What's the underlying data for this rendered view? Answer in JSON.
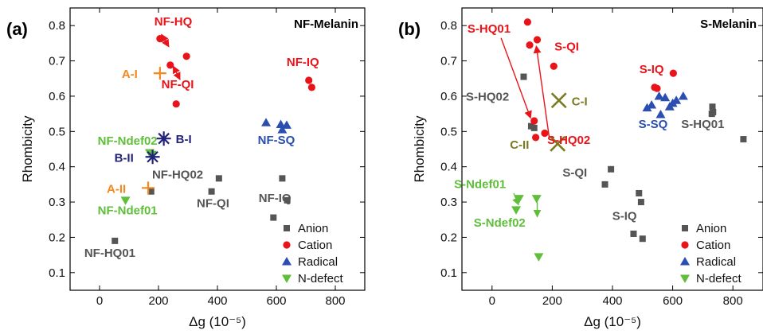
{
  "colors": {
    "anion": "#555555",
    "cation": "#e8141a",
    "radical": "#2a4fb0",
    "ndefect": "#5fbf3a",
    "excitonA": "#f5871f",
    "excitonB": "#23237a",
    "excitonC": "#7a7a1f"
  },
  "chart_data": [
    {
      "type": "scatter",
      "panel_label": "(a)",
      "title": "NF-Melanin",
      "xlabel": "Δg (10⁻⁵)",
      "ylabel": "Rhombicity",
      "xlim": [
        -100,
        900
      ],
      "ylim": [
        0.05,
        0.85
      ],
      "xticks": [
        0,
        200,
        400,
        600,
        800
      ],
      "xtick_labels": [
        "0",
        "200",
        "400",
        "600",
        "800"
      ],
      "yticks": [
        0.1,
        0.2,
        0.3,
        0.4,
        0.5,
        0.6,
        0.7,
        0.8
      ],
      "ytick_labels": [
        "0.1",
        "0.2",
        "0.3",
        "0.4",
        "0.5",
        "0.6",
        "0.7",
        "0.8"
      ],
      "legend_position": "bottom-right",
      "series": [
        {
          "key": "anion",
          "name": "Anion",
          "marker": "square",
          "color": "#555555",
          "points": [
            [
              52,
              0.19
            ],
            [
              175,
              0.33
            ],
            [
              380,
              0.33
            ],
            [
              405,
              0.367
            ],
            [
              590,
              0.256
            ],
            [
              620,
              0.367
            ],
            [
              637,
              0.305
            ]
          ]
        },
        {
          "key": "cation",
          "name": "Cation",
          "marker": "circle",
          "color": "#e8141a",
          "points": [
            [
              205,
              0.763
            ],
            [
              240,
              0.688
            ],
            [
              260,
              0.578
            ],
            [
              295,
              0.713
            ],
            [
              710,
              0.645
            ],
            [
              720,
              0.625
            ]
          ]
        },
        {
          "key": "radical",
          "name": "Radical",
          "marker": "triangle-up",
          "color": "#2a4fb0",
          "points": [
            [
              565,
              0.525
            ],
            [
              615,
              0.52
            ],
            [
              620,
              0.505
            ],
            [
              635,
              0.518
            ]
          ]
        },
        {
          "key": "ndefect",
          "name": "N-defect",
          "marker": "triangle-down",
          "color": "#5fbf3a",
          "points": [
            [
              88,
              0.305
            ],
            [
              170,
              0.44
            ],
            [
              178,
              0.435
            ]
          ]
        }
      ],
      "excitons": [
        {
          "label": "A-I",
          "marker": "plus",
          "color": "#f5871f",
          "point": [
            205,
            0.665
          ],
          "label_dx": -48,
          "label_dy": 0
        },
        {
          "label": "A-II",
          "marker": "plus",
          "color": "#f5871f",
          "point": [
            165,
            0.34
          ],
          "label_dx": -52,
          "label_dy": 0
        },
        {
          "label": "B-I",
          "marker": "asterisk",
          "color": "#23237a",
          "point": [
            218,
            0.48
          ],
          "label_dx": 15,
          "label_dy": 0
        },
        {
          "label": "B-II",
          "marker": "asterisk",
          "color": "#23237a",
          "point": [
            180,
            0.428
          ],
          "label_dx": -48,
          "label_dy": 0
        }
      ],
      "labels": [
        {
          "text": "NF-HQ",
          "color": "#e8141a",
          "at": [
            250,
            0.8
          ]
        },
        {
          "text": "NF-QI",
          "color": "#e8141a",
          "at": [
            265,
            0.622
          ]
        },
        {
          "text": "NF-IQ",
          "color": "#e8141a",
          "at": [
            690,
            0.685
          ]
        },
        {
          "text": "NF-Ndef02",
          "color": "#5fbf3a",
          "at": [
            95,
            0.462
          ]
        },
        {
          "text": "NF-Ndef01",
          "color": "#5fbf3a",
          "at": [
            95,
            0.265
          ]
        },
        {
          "text": "NF-HQ02",
          "color": "#555555",
          "at": [
            265,
            0.367
          ]
        },
        {
          "text": "NF-QI",
          "color": "#555555",
          "at": [
            385,
            0.285
          ]
        },
        {
          "text": "NF-IQ",
          "color": "#555555",
          "at": [
            595,
            0.3
          ]
        },
        {
          "text": "NF-HQ01",
          "color": "#555555",
          "at": [
            35,
            0.145
          ]
        },
        {
          "text": "NF-SQ",
          "color": "#2a4fb0",
          "at": [
            600,
            0.465
          ]
        }
      ],
      "arrows": [
        {
          "color": "#e8141a",
          "from": [
            235,
            0.74
          ],
          "to": [
            210,
            0.775
          ],
          "double": true
        },
        {
          "color": "#e8141a",
          "from": [
            250,
            0.685
          ],
          "to": [
            273,
            0.647
          ],
          "double": true
        }
      ]
    },
    {
      "type": "scatter",
      "panel_label": "(b)",
      "title": "S-Melanin",
      "xlabel": "Δg (10⁻⁵)",
      "ylabel": "Rhombicity",
      "xlim": [
        -100,
        900
      ],
      "ylim": [
        0.05,
        0.85
      ],
      "xticks": [
        0,
        200,
        400,
        600,
        800
      ],
      "xtick_labels": [
        "0",
        "200",
        "400",
        "600",
        "800"
      ],
      "yticks": [
        0.1,
        0.2,
        0.3,
        0.4,
        0.5,
        0.6,
        0.7,
        0.8
      ],
      "ytick_labels": [
        "0.1",
        "0.2",
        "0.3",
        "0.4",
        "0.5",
        "0.6",
        "0.7",
        "0.8"
      ],
      "legend_position": "bottom-right",
      "series": [
        {
          "key": "anion",
          "name": "Anion",
          "marker": "square",
          "color": "#555555",
          "points": [
            [
              105,
              0.655
            ],
            [
              130,
              0.515
            ],
            [
              140,
              0.51
            ],
            [
              375,
              0.35
            ],
            [
              395,
              0.393
            ],
            [
              470,
              0.21
            ],
            [
              488,
              0.325
            ],
            [
              495,
              0.3
            ],
            [
              500,
              0.196
            ],
            [
              732,
              0.57
            ],
            [
              734,
              0.555
            ],
            [
              730,
              0.55
            ],
            [
              835,
              0.478
            ]
          ]
        },
        {
          "key": "cation",
          "name": "Cation",
          "marker": "circle",
          "color": "#e8141a",
          "points": [
            [
              118,
              0.81
            ],
            [
              125,
              0.745
            ],
            [
              140,
              0.53
            ],
            [
              145,
              0.483
            ],
            [
              150,
              0.76
            ],
            [
              175,
              0.495
            ],
            [
              205,
              0.685
            ],
            [
              540,
              0.625
            ],
            [
              548,
              0.622
            ],
            [
              602,
              0.665
            ]
          ]
        },
        {
          "key": "radical",
          "name": "Radical",
          "marker": "triangle-up",
          "color": "#2a4fb0",
          "points": [
            [
              515,
              0.567
            ],
            [
              530,
              0.575
            ],
            [
              555,
              0.6
            ],
            [
              560,
              0.548
            ],
            [
              575,
              0.596
            ],
            [
              590,
              0.57
            ],
            [
              600,
              0.58
            ],
            [
              612,
              0.588
            ],
            [
              635,
              0.6
            ]
          ]
        },
        {
          "key": "ndefect",
          "name": "N-defect",
          "marker": "triangle-down",
          "color": "#5fbf3a",
          "points": [
            [
              80,
              0.278
            ],
            [
              90,
              0.31
            ],
            [
              148,
              0.31
            ],
            [
              155,
              0.145
            ]
          ]
        }
      ],
      "excitons": [
        {
          "label": "C-I",
          "marker": "cross",
          "color": "#7a7a1f",
          "point": [
            222,
            0.588
          ],
          "label_dx": 16,
          "label_dy": 0
        },
        {
          "label": "C-II",
          "marker": "cross",
          "color": "#7a7a1f",
          "point": [
            218,
            0.465
          ],
          "label_dx": -60,
          "label_dy": 0
        }
      ],
      "labels": [
        {
          "text": "S-HQ01",
          "color": "#e8141a",
          "at": [
            -10,
            0.78
          ]
        },
        {
          "text": "S-QI",
          "color": "#e8141a",
          "at": [
            248,
            0.73
          ]
        },
        {
          "text": "S-HQ02",
          "color": "#e8141a",
          "at": [
            255,
            0.465
          ]
        },
        {
          "text": "S-IQ",
          "color": "#e8141a",
          "at": [
            530,
            0.665
          ]
        },
        {
          "text": "S-HQ02",
          "color": "#555555",
          "at": [
            -15,
            0.588
          ]
        },
        {
          "text": "S-QI",
          "color": "#555555",
          "at": [
            275,
            0.372
          ]
        },
        {
          "text": "S-IQ",
          "color": "#555555",
          "at": [
            440,
            0.25
          ]
        },
        {
          "text": "S-HQ01",
          "color": "#555555",
          "at": [
            700,
            0.51
          ]
        },
        {
          "text": "S-SQ",
          "color": "#2a4fb0",
          "at": [
            535,
            0.51
          ]
        },
        {
          "text": "S-Ndef01",
          "color": "#5fbf3a",
          "at": [
            -40,
            0.34
          ]
        },
        {
          "text": "S-Ndef02",
          "color": "#5fbf3a",
          "at": [
            25,
            0.23
          ]
        }
      ],
      "arrows": [
        {
          "color": "#e8141a",
          "from": [
            30,
            0.765
          ],
          "to": [
            128,
            0.538
          ],
          "double": false
        },
        {
          "color": "#e8141a",
          "from": [
            190,
            0.483
          ],
          "to": [
            147,
            0.742
          ],
          "double": false
        },
        {
          "color": "#5fbf3a",
          "from": [
            150,
            0.302
          ],
          "to": [
            150,
            0.258
          ],
          "double": false
        },
        {
          "color": "#5fbf3a",
          "from": [
            72,
            0.325
          ],
          "to": [
            88,
            0.292
          ],
          "double": false
        }
      ]
    }
  ]
}
